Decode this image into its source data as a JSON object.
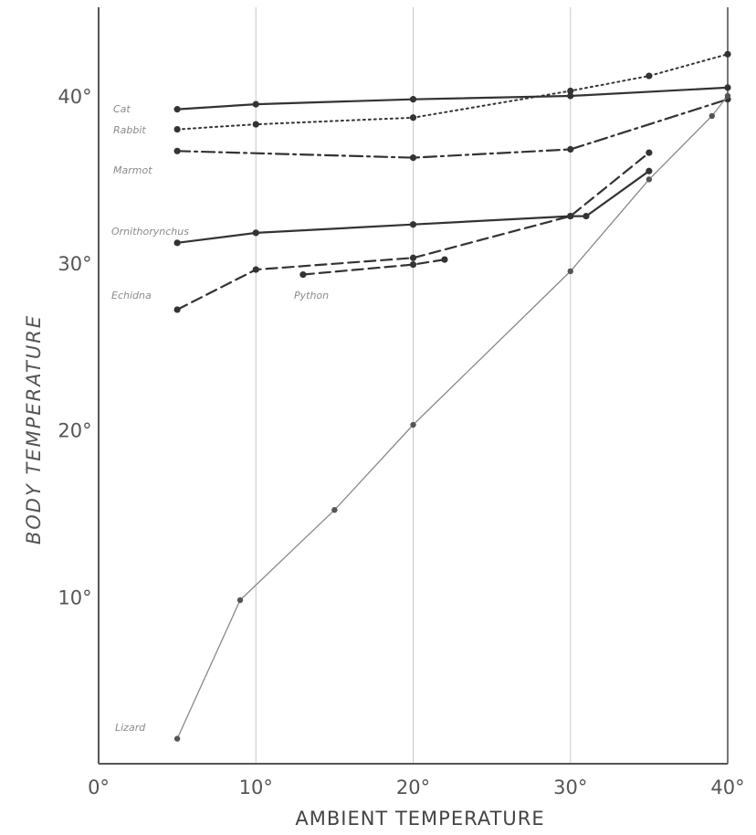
{
  "chart_data": {
    "type": "line",
    "title": "",
    "xlabel": "AMBIENT TEMPERATURE",
    "ylabel": "BODY TEMPERATURE",
    "xlim": [
      0,
      40
    ],
    "ylim": [
      0,
      45
    ],
    "grid": "vertical lines at 10° intervals",
    "x_ticks": [
      {
        "value": 0,
        "label": "0°"
      },
      {
        "value": 10,
        "label": "10°"
      },
      {
        "value": 20,
        "label": "20°"
      },
      {
        "value": 30,
        "label": "30°"
      },
      {
        "value": 40,
        "label": "40°"
      }
    ],
    "y_ticks": [
      {
        "value": 10,
        "label": "10°"
      },
      {
        "value": 20,
        "label": "20°"
      },
      {
        "value": 30,
        "label": "30°"
      },
      {
        "value": 40,
        "label": "40°"
      }
    ],
    "series": [
      {
        "name": "Cat",
        "style": "solid",
        "x": [
          5,
          10,
          20,
          30,
          40
        ],
        "y": [
          39.2,
          39.5,
          39.8,
          40.0,
          40.5
        ]
      },
      {
        "name": "Rabbit",
        "style": "dotted",
        "x": [
          5,
          10,
          20,
          30,
          35,
          40
        ],
        "y": [
          38.0,
          38.3,
          38.7,
          40.3,
          41.2,
          42.5
        ]
      },
      {
        "name": "Marmot",
        "style": "dashdot",
        "x": [
          5,
          20,
          30,
          40
        ],
        "y": [
          36.7,
          36.3,
          36.8,
          39.8
        ]
      },
      {
        "name": "Ornithorynchus",
        "style": "solid",
        "x": [
          5,
          10,
          20,
          30,
          31,
          35
        ],
        "y": [
          31.2,
          31.8,
          32.3,
          32.8,
          32.8,
          35.5
        ]
      },
      {
        "name": "Echidna",
        "style": "dashed",
        "x": [
          5,
          10,
          20,
          30,
          35
        ],
        "y": [
          27.2,
          29.6,
          30.3,
          32.8,
          36.6
        ]
      },
      {
        "name": "Python",
        "style": "dashed",
        "x": [
          13,
          20,
          22
        ],
        "y": [
          29.3,
          29.9,
          30.2
        ]
      },
      {
        "name": "Lizard",
        "style": "thin solid",
        "x": [
          5,
          9,
          15,
          20,
          30,
          35,
          39,
          40
        ],
        "y": [
          1.5,
          9.8,
          15.2,
          20.3,
          29.5,
          35.0,
          38.8,
          40.0
        ]
      }
    ]
  },
  "colors": {
    "axis": "#555555",
    "grid": "#c8c8c8",
    "series_dark": "#333333",
    "series_light": "#888888",
    "label": "#8a8a8a"
  }
}
